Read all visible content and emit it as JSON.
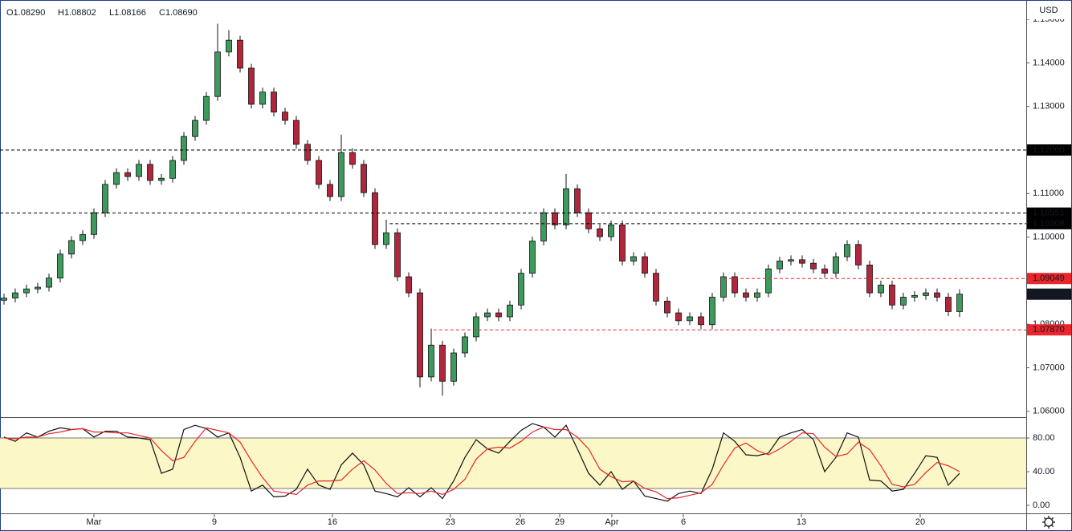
{
  "chart_data": [
    {
      "type": "candlestick",
      "header": [
        "O1.08290",
        "H1.08802",
        "L1.08166",
        "C1.08690"
      ],
      "currency": "USD",
      "up_color": "#3d9a5c",
      "down_color": "#b0263c",
      "xlim": [
        -0.357,
        90.93
      ],
      "ylim": [
        1.05867,
        1.15444
      ],
      "yticks": [
        {
          "value": 1.06,
          "label": "1.06000"
        },
        {
          "value": 1.07,
          "label": "1.07000"
        },
        {
          "value": 1.08,
          "label": "1.08000"
        },
        {
          "value": 1.09,
          "label": "1.09000"
        },
        {
          "value": 1.1,
          "label": "1.10000"
        },
        {
          "value": 1.11,
          "label": "1.11000"
        },
        {
          "value": 1.12,
          "label": "1.12000"
        },
        {
          "value": 1.13,
          "label": "1.13000"
        },
        {
          "value": 1.14,
          "label": "1.14000"
        },
        {
          "value": 1.15,
          "label": "1.15000"
        }
      ],
      "levels": [
        {
          "value": 1.12,
          "label": "1.12000",
          "color": "#000000",
          "x_start": -0.357
        },
        {
          "value": 1.10551,
          "label": "1.10551",
          "color": "#000000",
          "x_start": -0.357
        },
        {
          "value": 1.10308,
          "label": "1.10308",
          "color": "#000000",
          "x_start": 34.3
        },
        {
          "value": 1.09049,
          "label": "1.09049",
          "color": "#e8262b",
          "x_start": 64
        },
        {
          "value": 1.0787,
          "label": "1.07870",
          "color": "#e8262b",
          "x_start": 38.2
        }
      ],
      "last_price": {
        "value": 1.0869,
        "label": "1.08690"
      },
      "open": [
        1.0855,
        1.086,
        1.0872,
        1.0881,
        1.0885,
        1.0906,
        1.0961,
        1.0992,
        1.1006,
        1.1056,
        1.1121,
        1.1148,
        1.1139,
        1.1167,
        1.113,
        1.1135,
        1.1176,
        1.1231,
        1.1268,
        1.1323,
        1.1425,
        1.1452,
        1.1388,
        1.1305,
        1.1333,
        1.1287,
        1.1268,
        1.1213,
        1.1176,
        1.1121,
        1.1093,
        1.1194,
        1.1167,
        1.1102,
        1.0983,
        1.101,
        1.0909,
        1.0872,
        1.0679,
        1.0752,
        1.0669,
        1.0734,
        1.0771,
        1.0817,
        1.0826,
        1.0817,
        1.0844,
        1.0917,
        1.0991,
        1.1056,
        1.1028,
        1.1111,
        1.1056,
        1.1019,
        1.1001,
        1.1028,
        1.0945,
        1.0955,
        1.0917,
        1.0853,
        1.0826,
        1.0808,
        1.0817,
        1.0799,
        1.0862,
        1.0909,
        1.0872,
        1.0862,
        1.0872,
        1.0927,
        1.0945,
        1.0948,
        1.094,
        1.0927,
        1.0917,
        1.0955,
        1.0983,
        1.0936,
        1.0872,
        1.089,
        1.0844,
        1.0862,
        1.0866,
        1.0872,
        1.0862,
        1.0829
      ],
      "high": [
        1.087,
        1.0882,
        1.0891,
        1.0895,
        1.0916,
        1.0971,
        1.1002,
        1.1016,
        1.1066,
        1.1131,
        1.1158,
        1.1158,
        1.1177,
        1.1177,
        1.1145,
        1.1186,
        1.1241,
        1.1278,
        1.1333,
        1.149,
        1.1475,
        1.1462,
        1.1398,
        1.1343,
        1.1343,
        1.1297,
        1.1278,
        1.1223,
        1.1186,
        1.1131,
        1.1235,
        1.1204,
        1.1177,
        1.1112,
        1.104,
        1.102,
        1.0919,
        1.0882,
        1.079,
        1.0762,
        1.0744,
        1.0781,
        1.0827,
        1.0836,
        1.0836,
        1.0854,
        1.0927,
        1.1001,
        1.1066,
        1.1066,
        1.1145,
        1.1121,
        1.1066,
        1.1029,
        1.1038,
        1.1038,
        1.0965,
        1.0965,
        1.0927,
        1.0863,
        1.0836,
        1.0827,
        1.0827,
        1.0872,
        1.0919,
        1.0919,
        1.0882,
        1.0882,
        1.0937,
        1.0955,
        1.0958,
        1.0958,
        1.095,
        1.0937,
        1.0965,
        1.0993,
        1.0993,
        1.0946,
        1.09,
        1.09,
        1.0872,
        1.0876,
        1.0882,
        1.0882,
        1.0872,
        1.08802
      ],
      "low": [
        1.0845,
        1.085,
        1.0862,
        1.0871,
        1.0875,
        1.0896,
        1.0951,
        1.0982,
        1.0996,
        1.1046,
        1.1111,
        1.1129,
        1.1129,
        1.112,
        1.112,
        1.1125,
        1.1166,
        1.1221,
        1.1258,
        1.1313,
        1.1415,
        1.1378,
        1.1295,
        1.1295,
        1.1277,
        1.1258,
        1.1203,
        1.1166,
        1.1111,
        1.1083,
        1.1083,
        1.1157,
        1.1092,
        1.0973,
        1.0973,
        1.0899,
        1.0862,
        1.0655,
        1.0669,
        1.0636,
        1.0659,
        1.0724,
        1.0761,
        1.0807,
        1.0807,
        1.0807,
        1.0834,
        1.0907,
        1.0981,
        1.1018,
        1.1018,
        1.1046,
        1.1009,
        1.0991,
        1.0991,
        1.0935,
        1.0935,
        1.0907,
        1.0843,
        1.0816,
        1.0798,
        1.0798,
        1.0789,
        1.0789,
        1.0852,
        1.0862,
        1.0852,
        1.0852,
        1.0862,
        1.0917,
        1.0935,
        1.093,
        1.0917,
        1.0907,
        1.0907,
        1.0945,
        1.0926,
        1.0862,
        1.0862,
        1.0834,
        1.0834,
        1.0852,
        1.0856,
        1.0852,
        1.0819,
        1.08166
      ],
      "close": [
        1.086,
        1.0872,
        1.0881,
        1.0885,
        1.0906,
        1.0961,
        1.0992,
        1.1006,
        1.1056,
        1.1121,
        1.1148,
        1.1139,
        1.1167,
        1.113,
        1.1135,
        1.1176,
        1.1231,
        1.1268,
        1.1323,
        1.1425,
        1.1452,
        1.1388,
        1.1305,
        1.1333,
        1.1287,
        1.1268,
        1.1213,
        1.1176,
        1.1121,
        1.1093,
        1.1194,
        1.1167,
        1.1102,
        1.0983,
        1.101,
        1.0909,
        1.0872,
        1.0679,
        1.0752,
        1.0669,
        1.0734,
        1.0771,
        1.0817,
        1.0826,
        1.0817,
        1.0844,
        1.0917,
        1.0991,
        1.1056,
        1.1028,
        1.1111,
        1.1056,
        1.1019,
        1.1001,
        1.1028,
        1.0945,
        1.0955,
        1.0917,
        1.0853,
        1.0826,
        1.0808,
        1.0817,
        1.0799,
        1.0862,
        1.0909,
        1.0872,
        1.0862,
        1.0872,
        1.0927,
        1.0945,
        1.0948,
        1.094,
        1.0927,
        1.0917,
        1.0955,
        1.0983,
        1.0936,
        1.0872,
        1.089,
        1.0844,
        1.0862,
        1.0866,
        1.0872,
        1.0862,
        1.0829,
        1.0869
      ]
    },
    {
      "type": "line",
      "xlim": [
        -0.357,
        90.93
      ],
      "ylim": [
        -9.52,
        104.76
      ],
      "yticks": [
        {
          "value": 0,
          "label": "0.00"
        },
        {
          "value": 40,
          "label": "40.00"
        },
        {
          "value": 80,
          "label": "80.00"
        }
      ],
      "band": [
        20,
        80
      ],
      "band_color": "#fbf7c6",
      "xticks": [
        {
          "value": 8,
          "label": "Mar"
        },
        {
          "value": 18.71,
          "label": "9"
        },
        {
          "value": 29.21,
          "label": "16"
        },
        {
          "value": 39.71,
          "label": "23"
        },
        {
          "value": 45.93,
          "label": "26"
        },
        {
          "value": 49.43,
          "label": "29"
        },
        {
          "value": 54.07,
          "label": "Apr"
        },
        {
          "value": 60.43,
          "label": "6"
        },
        {
          "value": 70.93,
          "label": "13"
        },
        {
          "value": 81.5,
          "label": "20"
        }
      ],
      "series": [
        {
          "color": "#111111",
          "values": [
            81,
            76,
            86,
            81,
            88,
            92,
            90,
            91,
            81,
            88,
            88,
            81,
            80,
            78,
            38,
            43,
            90,
            95,
            91,
            81,
            86,
            57,
            17,
            24,
            10,
            11,
            19,
            43,
            24,
            19,
            48,
            62,
            48,
            17,
            14,
            10,
            21,
            10,
            21,
            8,
            29,
            57,
            78,
            67,
            62,
            76,
            89,
            97,
            93,
            81,
            95,
            67,
            38,
            24,
            40,
            19,
            29,
            11,
            8,
            5,
            14,
            17,
            14,
            43,
            86,
            76,
            60,
            59,
            62,
            81,
            86,
            90,
            78,
            40,
            57,
            86,
            81,
            30,
            29,
            17,
            19,
            38,
            59,
            57,
            24,
            38
          ]
        },
        {
          "color": "#e8262b",
          "values": [
            80,
            79,
            81,
            81,
            85,
            87,
            90,
            91,
            87,
            87,
            86,
            86,
            83,
            80,
            65,
            53,
            57,
            76,
            92,
            89,
            86,
            75,
            53,
            33,
            17,
            15,
            13,
            24,
            29,
            29,
            30,
            43,
            53,
            42,
            26,
            14,
            15,
            14,
            17,
            13,
            19,
            31,
            55,
            67,
            69,
            68,
            76,
            87,
            93,
            90,
            90,
            81,
            67,
            43,
            34,
            28,
            29,
            20,
            16,
            8,
            9,
            12,
            15,
            25,
            48,
            68,
            74,
            65,
            60,
            67,
            76,
            86,
            85,
            69,
            58,
            61,
            75,
            66,
            47,
            25,
            22,
            25,
            39,
            51,
            47,
            40
          ]
        }
      ]
    }
  ]
}
